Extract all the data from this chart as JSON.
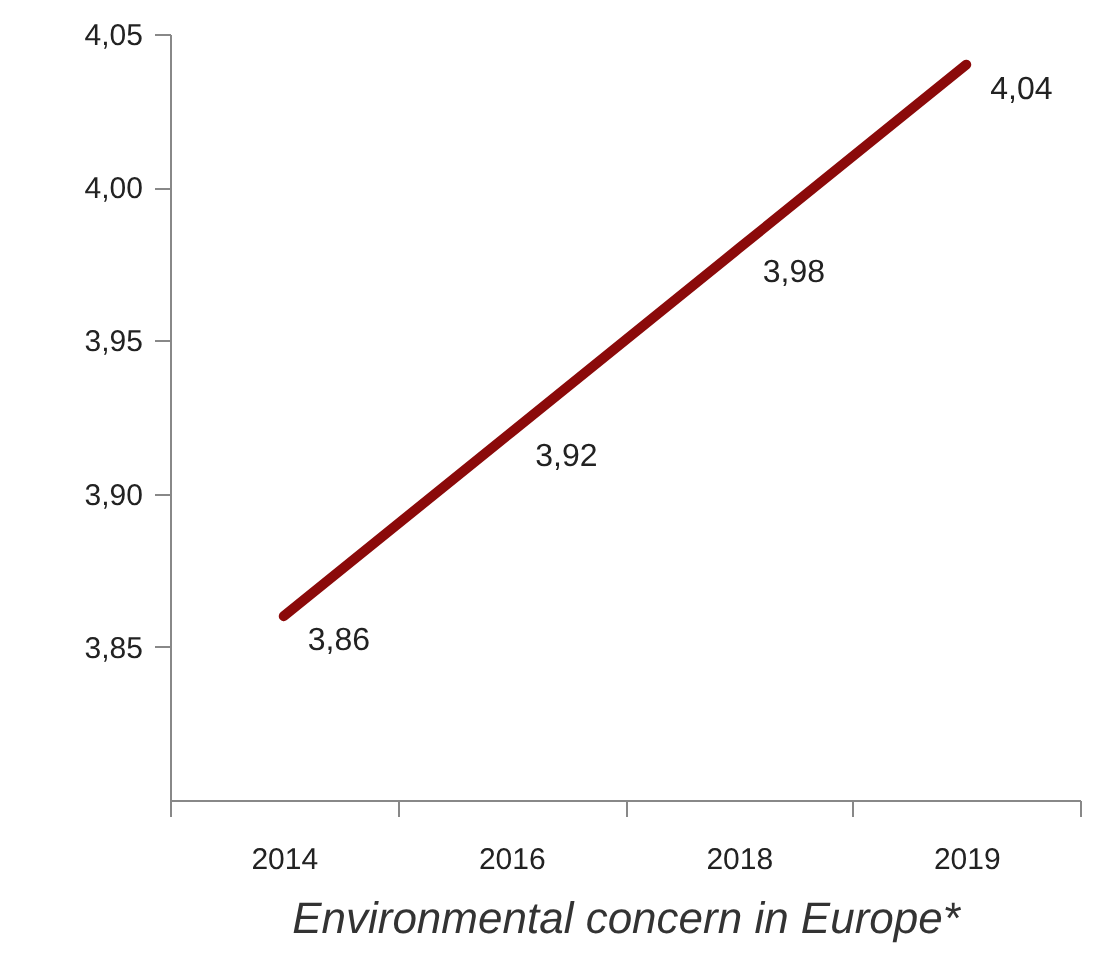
{
  "chart_data": {
    "type": "line",
    "xlabel": "Environmental concern in Europe*",
    "categories": [
      "2014",
      "2016",
      "2018",
      "2019"
    ],
    "series": [
      {
        "color": "#8b0a0a",
        "values": [
          3.86,
          3.92,
          3.98,
          4.04
        ],
        "value_labels": [
          "3,86",
          "3,92",
          "3,98",
          "4,04"
        ]
      }
    ],
    "ylim": [
      3.8,
      4.05
    ],
    "yticks": [
      {
        "value": 3.85,
        "label": "3,85"
      },
      {
        "value": 3.9,
        "label": "3,90"
      },
      {
        "value": 3.95,
        "label": "3,95"
      },
      {
        "value": 4.0,
        "label": "4,00"
      },
      {
        "value": 4.05,
        "label": "4,05"
      }
    ],
    "grid": false,
    "marker": "none",
    "line_style": "solid"
  }
}
